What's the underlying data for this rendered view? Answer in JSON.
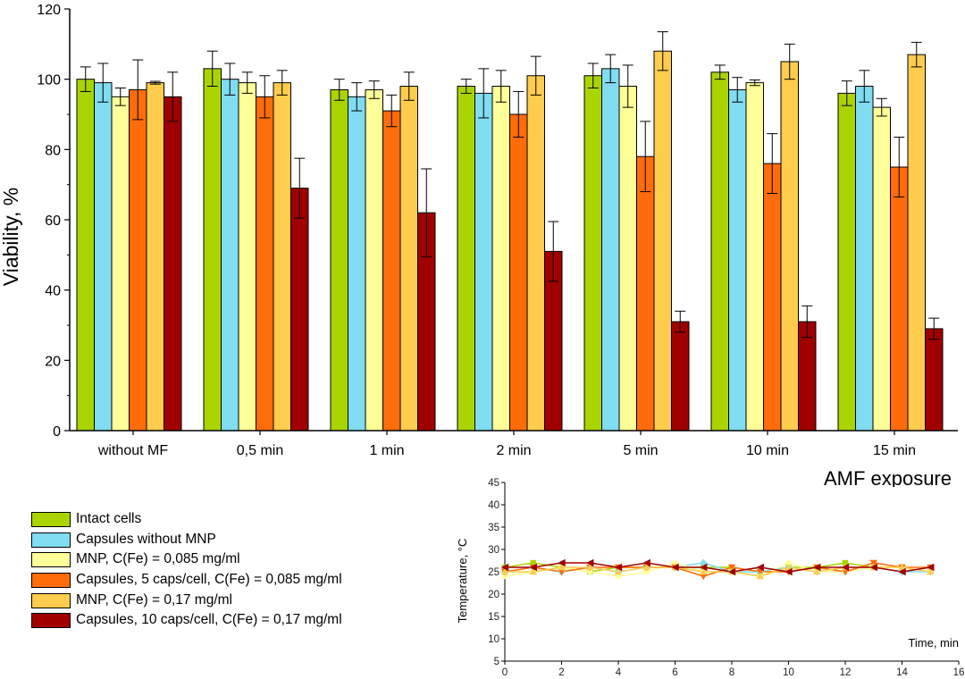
{
  "chart_data": [
    {
      "type": "bar",
      "title": "",
      "xlabel": "AMF exposure",
      "ylabel": "Viability, %",
      "ylim": [
        0,
        120
      ],
      "yticks": [
        0,
        20,
        40,
        60,
        80,
        100,
        120
      ],
      "grid": false,
      "legend_position": "bottom-left",
      "categories": [
        "without MF",
        "0,5 min",
        "1 min",
        "2 min",
        "5 min",
        "10 min",
        "15 min"
      ],
      "series": [
        {
          "name": "Intact cells",
          "color": "#aad400",
          "values": [
            100,
            103,
            97,
            98,
            101,
            102,
            96
          ],
          "errors": [
            3.5,
            5,
            3,
            2,
            3.5,
            2,
            3.5
          ]
        },
        {
          "name": "Capsules without MNP",
          "color": "#80dcf0",
          "values": [
            99,
            100,
            95,
            96,
            103,
            97,
            98
          ],
          "errors": [
            5.5,
            4.5,
            4,
            7,
            4,
            3.5,
            4.5
          ]
        },
        {
          "name": "MNP, C(Fe) = 0,085 mg/ml",
          "color": "#ffff99",
          "values": [
            95,
            99,
            97,
            98,
            98,
            99,
            92
          ],
          "errors": [
            2.5,
            3,
            2.5,
            4.5,
            6,
            0.8,
            2.5
          ]
        },
        {
          "name": "Capsules, 5 caps/cell, C(Fe) = 0,085 mg/ml",
          "color": "#ff6c0a",
          "values": [
            97,
            95,
            91,
            90,
            78,
            76,
            75
          ],
          "errors": [
            8.5,
            6,
            4.5,
            6.5,
            10,
            8.5,
            8.5
          ]
        },
        {
          "name": "MNP, C(Fe) = 0,17 mg/ml",
          "color": "#ffcc4d",
          "values": [
            99,
            99,
            98,
            101,
            108,
            105,
            107
          ],
          "errors": [
            0.4,
            3.5,
            4,
            5.5,
            5.5,
            5,
            3.5
          ]
        },
        {
          "name": "Capsules, 10 caps/cell, C(Fe) = 0,17 mg/ml",
          "color": "#a00000",
          "values": [
            95,
            69,
            62,
            51,
            31,
            31,
            29
          ],
          "errors": [
            7,
            8.5,
            12.5,
            8.5,
            3,
            4.5,
            3
          ]
        }
      ]
    },
    {
      "type": "line",
      "title": "",
      "xlabel": "Time, min",
      "ylabel": "Temperature, °C",
      "xlim": [
        0,
        16
      ],
      "ylim": [
        5,
        45
      ],
      "xticks": [
        0,
        2,
        4,
        6,
        8,
        10,
        12,
        14,
        16
      ],
      "yticks": [
        5,
        10,
        15,
        20,
        25,
        30,
        35,
        40,
        45
      ],
      "grid": false,
      "x": [
        0,
        1,
        2,
        3,
        4,
        5,
        6,
        7,
        8,
        9,
        10,
        11,
        12,
        13,
        14,
        15
      ],
      "series": [
        {
          "name": "Intact cells",
          "color": "#aad400",
          "marker": "square",
          "values": [
            26,
            27,
            26,
            25,
            26,
            26,
            26,
            26,
            26,
            25,
            26,
            26,
            27,
            26,
            26,
            25
          ]
        },
        {
          "name": "Capsules without MNP",
          "color": "#80dcf0",
          "marker": "diamond",
          "values": [
            25,
            26,
            25,
            26,
            25,
            26,
            26,
            27,
            25,
            25,
            26,
            25,
            25,
            26,
            25,
            25
          ]
        },
        {
          "name": "MNP, C(Fe) = 0,085 mg/ml",
          "color": "#ffff99",
          "marker": "circle",
          "values": [
            24,
            25,
            26,
            25,
            24,
            25,
            27,
            25,
            25,
            24,
            27,
            25,
            25,
            26,
            26,
            25
          ]
        },
        {
          "name": "Capsules, 5 caps/cell, C(Fe) = 0,085 mg/ml",
          "color": "#ff6c0a",
          "marker": "triangle-down",
          "values": [
            25,
            26,
            25,
            26,
            26,
            26,
            26,
            24,
            26,
            25,
            25,
            26,
            25,
            27,
            26,
            26
          ]
        },
        {
          "name": "MNP, C(Fe) = 0,17 mg/ml",
          "color": "#ffcc4d",
          "marker": "triangle-up",
          "values": [
            25,
            25,
            26,
            26,
            25,
            26,
            26,
            25,
            25,
            24,
            26,
            25,
            26,
            26,
            26,
            25
          ]
        },
        {
          "name": "Capsules, 10 caps/cell, C(Fe) = 0,17 mg/ml",
          "color": "#a00000",
          "marker": "triangle-left",
          "values": [
            26,
            26,
            27,
            27,
            26,
            27,
            26,
            26,
            25,
            26,
            25,
            26,
            26,
            26,
            25,
            26
          ]
        }
      ]
    }
  ]
}
